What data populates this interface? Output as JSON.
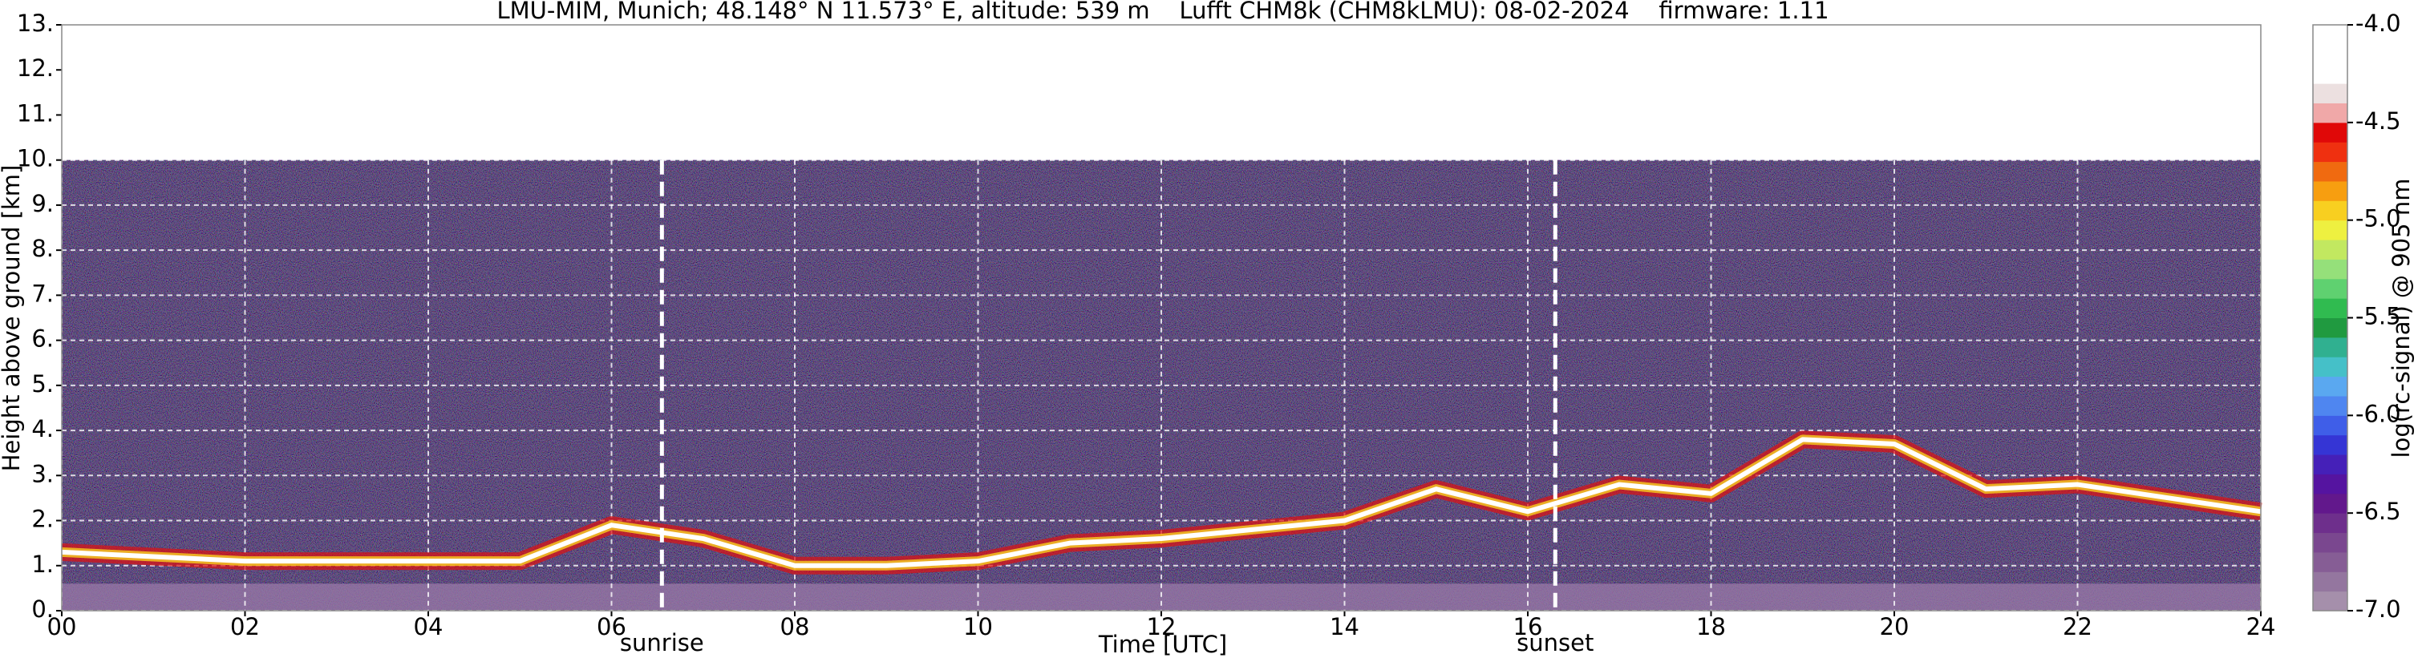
{
  "chart_data": {
    "type": "line",
    "title": "LMU-MIM, Munich; 48.148° N 11.573° E, altitude: 539 m    Lufft CHM8k (CHM8kLMU): 08-02-2024    firmware: 1.11",
    "x_label": "Time [UTC]",
    "y_label": "Height above ground [km]",
    "x": [
      0,
      1,
      2,
      3,
      4,
      5,
      6,
      7,
      8,
      9,
      10,
      11,
      12,
      13,
      14,
      15,
      16,
      17,
      18,
      19,
      20,
      21,
      22,
      23,
      24
    ],
    "values": [
      1.3,
      1.2,
      1.1,
      1.1,
      1.1,
      1.1,
      1.9,
      1.6,
      1.0,
      1.0,
      1.1,
      1.5,
      1.6,
      1.8,
      2.0,
      2.7,
      2.2,
      2.8,
      2.6,
      3.8,
      3.7,
      2.7,
      2.8,
      2.5,
      2.2
    ],
    "color": "#ffffff",
    "xlim": [
      0,
      24
    ],
    "xticks": [
      {
        "value": 0,
        "label": "00"
      },
      {
        "value": 2,
        "label": "02"
      },
      {
        "value": 4,
        "label": "04"
      },
      {
        "value": 6,
        "label": "06"
      },
      {
        "value": 8,
        "label": "08"
      },
      {
        "value": 10,
        "label": "10"
      },
      {
        "value": 12,
        "label": "12"
      },
      {
        "value": 14,
        "label": "14"
      },
      {
        "value": 16,
        "label": "16"
      },
      {
        "value": 18,
        "label": "18"
      },
      {
        "value": 20,
        "label": "20"
      },
      {
        "value": 22,
        "label": "22"
      },
      {
        "value": 24,
        "label": "24"
      }
    ],
    "ylim": [
      0,
      13
    ],
    "yticks": [
      {
        "value": 0,
        "label": "0."
      },
      {
        "value": 1,
        "label": "1."
      },
      {
        "value": 2,
        "label": "2."
      },
      {
        "value": 3,
        "label": "3."
      },
      {
        "value": 4,
        "label": "4."
      },
      {
        "value": 5,
        "label": "5."
      },
      {
        "value": 6,
        "label": "6."
      },
      {
        "value": 7,
        "label": "7."
      },
      {
        "value": 8,
        "label": "8."
      },
      {
        "value": 9,
        "label": "9."
      },
      {
        "value": 10,
        "label": "10."
      },
      {
        "value": 11,
        "label": "11."
      },
      {
        "value": 12,
        "label": "12."
      },
      {
        "value": 13,
        "label": "13."
      }
    ],
    "grid": true,
    "annotations": [
      {
        "text": "sunrise",
        "x": 6.55
      },
      {
        "text": "sunset",
        "x": 16.3
      }
    ],
    "colorbar": {
      "label": "log(rc-signal) @ 905 nm",
      "lim": [
        -7,
        -4
      ],
      "ticks": [
        {
          "value": -4,
          "label": "-4.0"
        },
        {
          "value": -4.5,
          "label": "-4.5"
        },
        {
          "value": -5,
          "label": "-5.0"
        },
        {
          "value": -5.5,
          "label": "-5.5"
        },
        {
          "value": -6,
          "label": "-6.0"
        },
        {
          "value": -6.5,
          "label": "-6.5"
        },
        {
          "value": -7,
          "label": "-7.0"
        }
      ],
      "colors": [
        "#a58fab",
        "#94769f",
        "#865d95",
        "#7a478f",
        "#6e2f8c",
        "#62188c",
        "#5514a0",
        "#4520b8",
        "#3535d5",
        "#3f5ee8",
        "#4f86f0",
        "#5aa8f0",
        "#45c0c8",
        "#30b090",
        "#209a40",
        "#30bb50",
        "#5fd170",
        "#95e07a",
        "#c2e860",
        "#eef040",
        "#f8cf20",
        "#f79e10",
        "#f06a10",
        "#ef3010",
        "#e00808",
        "#f0a8a8",
        "#ece0e0",
        "#ffffff",
        "#ffffff",
        "#ffffff"
      ]
    }
  }
}
